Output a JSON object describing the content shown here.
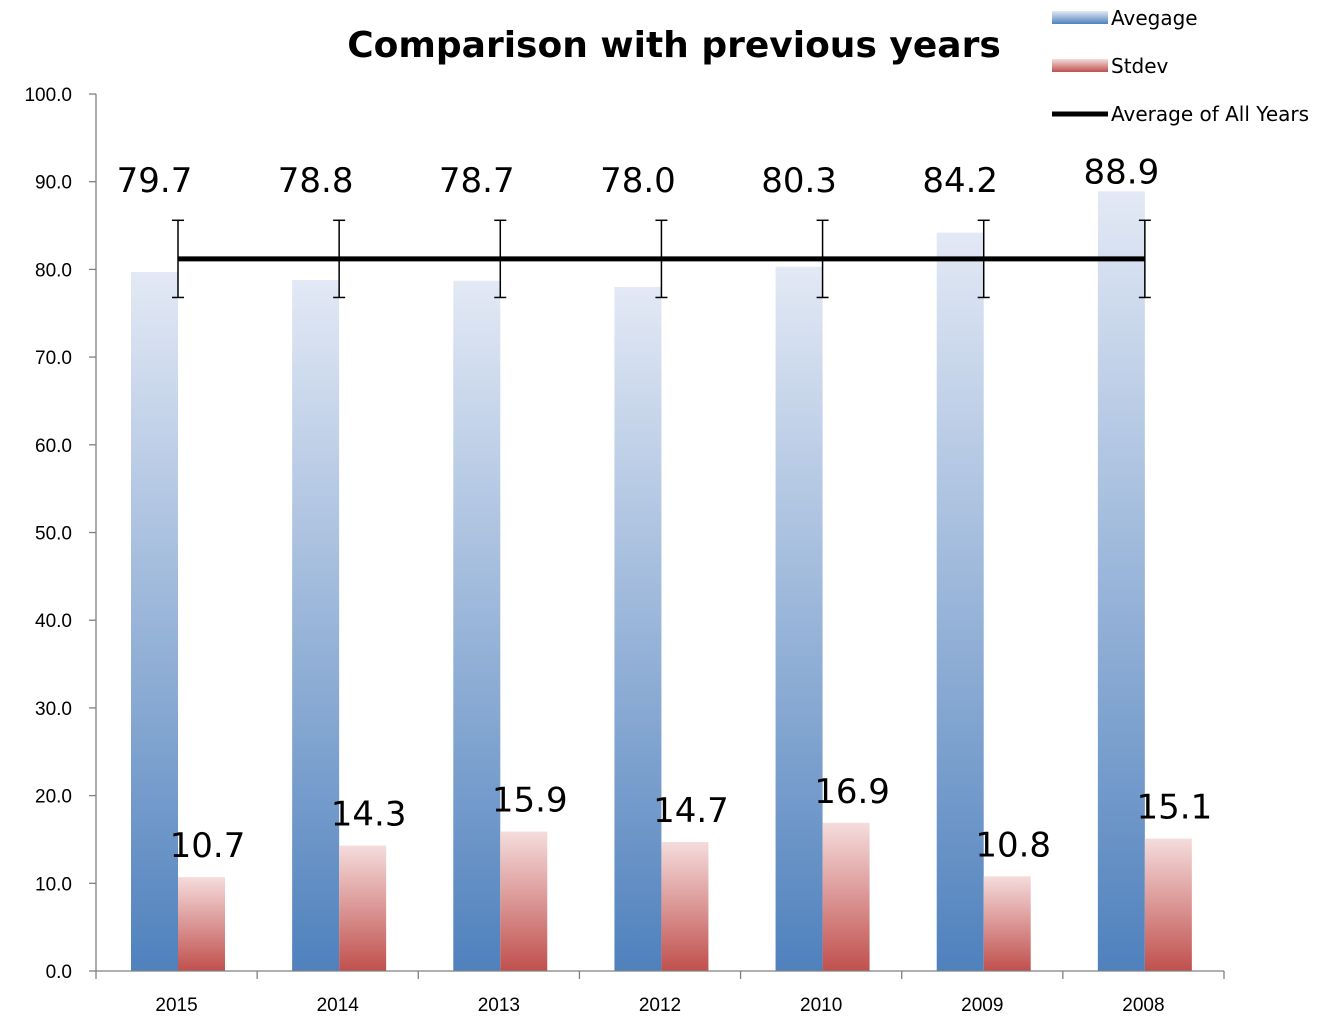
{
  "chart_data": {
    "type": "bar",
    "title": "Comparison with previous years",
    "xlabel": "",
    "ylabel": "",
    "categories": [
      "2015",
      "2014",
      "2013",
      "2012",
      "2010",
      "2009",
      "2008"
    ],
    "series": [
      {
        "name": "Avegage",
        "type": "bar",
        "values": [
          79.7,
          78.8,
          78.7,
          78.0,
          80.3,
          84.2,
          88.9
        ],
        "labels": [
          "79.7",
          "78.8",
          "78.7",
          "78.0",
          "80.3",
          "84.2",
          "88.9"
        ]
      },
      {
        "name": "Stdev",
        "type": "bar",
        "values": [
          10.7,
          14.3,
          15.9,
          14.7,
          16.9,
          10.8,
          15.1
        ],
        "labels": [
          "10.7",
          "14.3",
          "15.9",
          "14.7",
          "16.9",
          "10.8",
          "15.1"
        ]
      },
      {
        "name": "Average of All Years",
        "type": "line",
        "value": 81.2,
        "error_bar": 4.4
      }
    ],
    "ylim": [
      0,
      100
    ],
    "yticks": [
      "0.0",
      "10.0",
      "20.0",
      "30.0",
      "40.0",
      "50.0",
      "60.0",
      "70.0",
      "80.0",
      "90.0",
      "100.0"
    ],
    "ytick_values": [
      0,
      10,
      20,
      30,
      40,
      50,
      60,
      70,
      80,
      90,
      100
    ],
    "grid": false,
    "legend_position": "top-right",
    "colors": {
      "avg_top": "#e3e9f5",
      "avg_bottom": "#4f81bd",
      "std_top": "#f5dcdc",
      "std_bottom": "#c0504d",
      "line": "#000000",
      "axis": "#808080"
    }
  }
}
